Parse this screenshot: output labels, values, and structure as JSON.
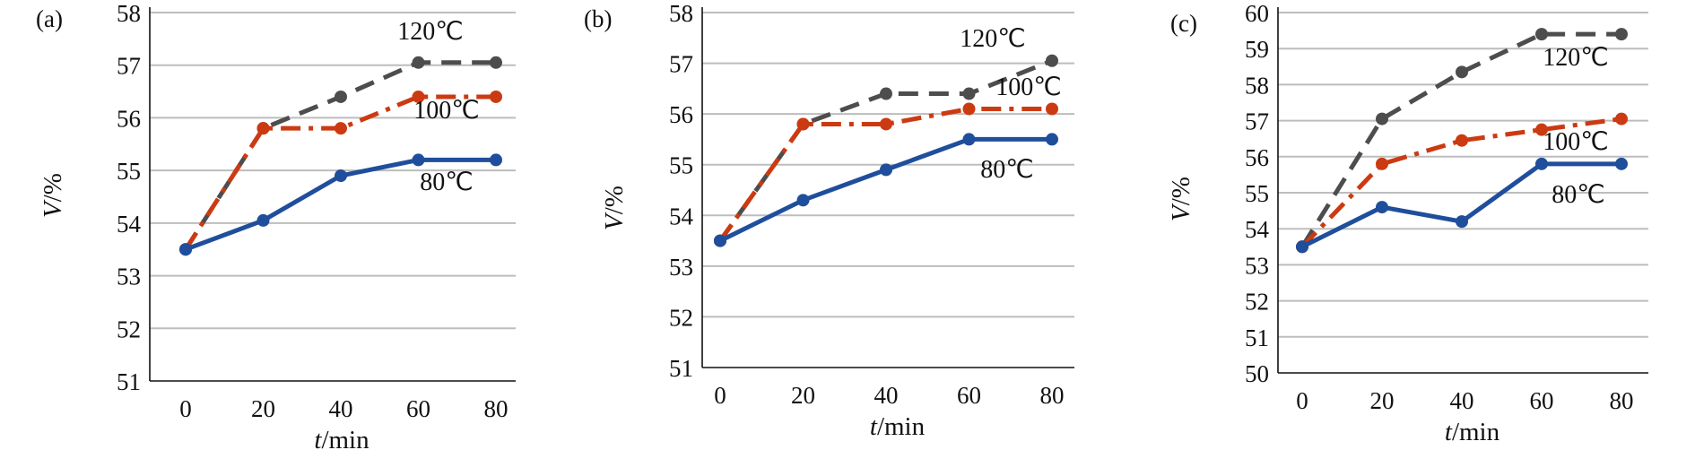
{
  "chart_data": [
    {
      "type": "line",
      "panel_label": "(a)",
      "xlabel": "t/min",
      "ylabel": "V/%",
      "x": [
        0,
        20,
        40,
        60,
        80
      ],
      "ylim": [
        51,
        58
      ],
      "yticks": [
        51,
        52,
        53,
        54,
        55,
        56,
        57,
        58
      ],
      "grid": true,
      "series": [
        {
          "name": "120℃",
          "values": [
            53.5,
            55.8,
            56.4,
            57.05,
            57.05
          ],
          "color": "#4d4d4d",
          "style": "dashed"
        },
        {
          "name": "100℃",
          "values": [
            53.5,
            55.8,
            55.8,
            56.4,
            56.4
          ],
          "color": "#cc3a12",
          "style": "dashdot"
        },
        {
          "name": "80℃",
          "values": [
            53.5,
            54.05,
            54.9,
            55.2,
            55.2
          ],
          "color": "#1f4e9c",
          "style": "solid"
        }
      ]
    },
    {
      "type": "line",
      "panel_label": "(b)",
      "xlabel": "t/min",
      "ylabel": "V/%",
      "x": [
        0,
        20,
        40,
        60,
        80
      ],
      "ylim": [
        51,
        58
      ],
      "yticks": [
        51,
        52,
        53,
        54,
        55,
        56,
        57,
        58
      ],
      "grid": true,
      "series": [
        {
          "name": "120℃",
          "values": [
            53.5,
            55.8,
            56.4,
            56.4,
            57.05
          ],
          "color": "#4d4d4d",
          "style": "dashed"
        },
        {
          "name": "100℃",
          "values": [
            53.5,
            55.8,
            55.8,
            56.1,
            56.1
          ],
          "color": "#cc3a12",
          "style": "dashdot"
        },
        {
          "name": "80℃",
          "values": [
            53.5,
            54.3,
            54.9,
            55.5,
            55.5
          ],
          "color": "#1f4e9c",
          "style": "solid"
        }
      ]
    },
    {
      "type": "line",
      "panel_label": "(c)",
      "xlabel": "t/min",
      "ylabel": "V/%",
      "x": [
        0,
        20,
        40,
        60,
        80
      ],
      "ylim": [
        50,
        60
      ],
      "yticks": [
        50,
        51,
        52,
        53,
        54,
        55,
        56,
        57,
        58,
        59,
        60
      ],
      "grid": true,
      "series": [
        {
          "name": "120℃",
          "values": [
            53.5,
            57.05,
            58.35,
            59.4,
            59.4
          ],
          "color": "#4d4d4d",
          "style": "dashed"
        },
        {
          "name": "100℃",
          "values": [
            53.5,
            55.8,
            56.45,
            56.75,
            57.05
          ],
          "color": "#cc3a12",
          "style": "dashdot"
        },
        {
          "name": "80℃",
          "values": [
            53.5,
            54.6,
            54.2,
            55.8,
            55.8
          ],
          "color": "#1f4e9c",
          "style": "solid"
        }
      ]
    }
  ]
}
